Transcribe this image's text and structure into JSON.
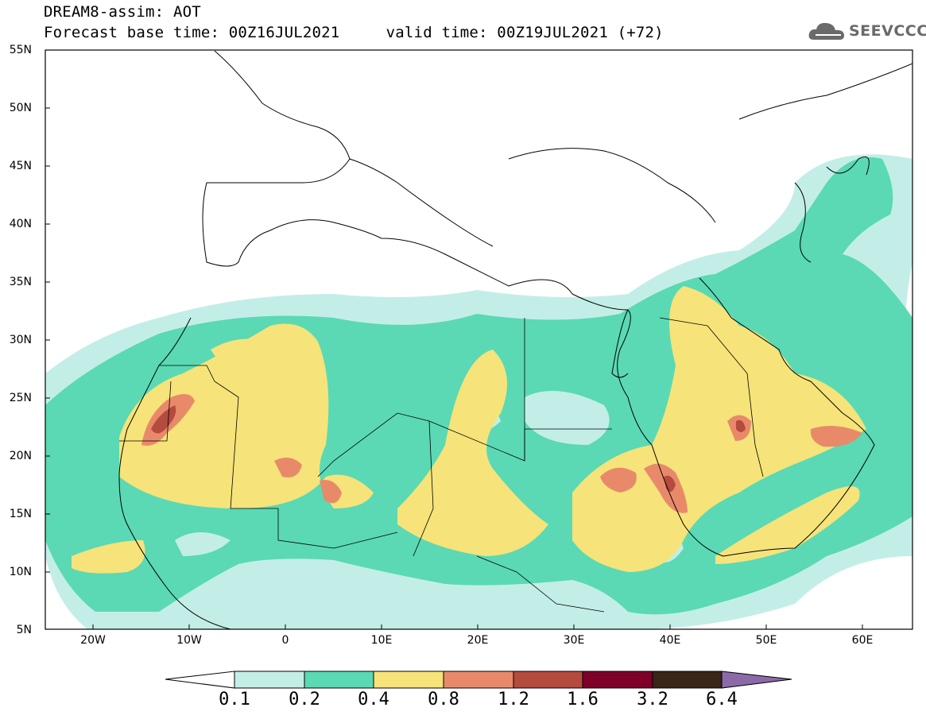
{
  "header": {
    "title_line1": "DREAM8-assim: AOT",
    "title_line2": "Forecast base time: 00Z16JUL2021     valid time: 00Z19JUL2021 (+72)",
    "logo_text": "SEEVCCC",
    "logo_icon": "cloud-icon"
  },
  "map": {
    "variable": "AOT",
    "lat_range": [
      5,
      55
    ],
    "lon_range": [
      -25,
      65
    ],
    "lat_labels": [
      "55N",
      "50N",
      "45N",
      "40N",
      "35N",
      "30N",
      "25N",
      "20N",
      "15N",
      "10N",
      "5N"
    ],
    "lon_labels": [
      "20W",
      "10W",
      "0",
      "10E",
      "20E",
      "30E",
      "40E",
      "50E",
      "60E"
    ]
  },
  "colorbar": {
    "labels": [
      "0.1",
      "0.2",
      "0.4",
      "0.8",
      "1.2",
      "1.6",
      "3.2",
      "6.4"
    ],
    "colors": [
      "#ffffff",
      "#c3eee8",
      "#5ad9b4",
      "#f6e37a",
      "#e88a6a",
      "#b34b3e",
      "#7e0028",
      "#3b2418",
      "#8c6aa8"
    ]
  }
}
